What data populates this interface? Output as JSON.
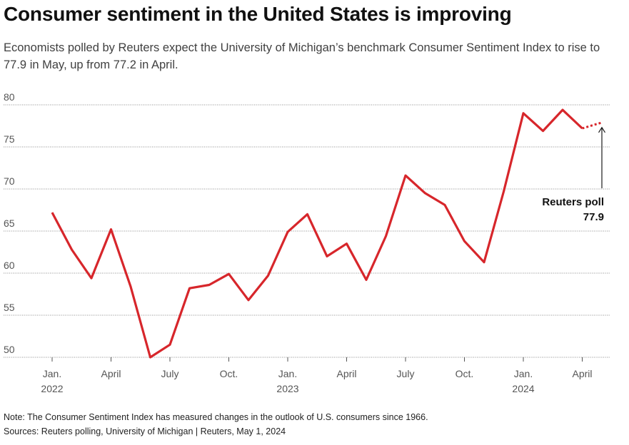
{
  "header": {
    "title": "Consumer sentiment in the United States is improving",
    "subtitle": "Economists polled by Reuters expect the University of Michigan’s benchmark Consumer Sentiment Index to rise to 77.9 in May, up from 77.2 in April."
  },
  "footer": {
    "note": "Note: The Consumer Sentiment Index has measured changes in the outlook of U.S. consumers since 1966.",
    "sources": "Sources: Reuters polling, University of Michigan | Reuters, May 1, 2024"
  },
  "chart_data": {
    "type": "line",
    "title": "Consumer sentiment in the United States is improving",
    "xlabel": "",
    "ylabel": "",
    "ylim": [
      50,
      80
    ],
    "yticks": [
      50,
      55,
      60,
      65,
      70,
      75,
      80
    ],
    "grid": true,
    "xticks": [
      {
        "index": 0,
        "label": "Jan.",
        "year": "2022"
      },
      {
        "index": 3,
        "label": "April",
        "year": ""
      },
      {
        "index": 6,
        "label": "July",
        "year": ""
      },
      {
        "index": 9,
        "label": "Oct.",
        "year": ""
      },
      {
        "index": 12,
        "label": "Jan.",
        "year": "2023"
      },
      {
        "index": 15,
        "label": "April",
        "year": ""
      },
      {
        "index": 18,
        "label": "July",
        "year": ""
      },
      {
        "index": 21,
        "label": "Oct.",
        "year": ""
      },
      {
        "index": 24,
        "label": "Jan.",
        "year": "2024"
      },
      {
        "index": 27,
        "label": "April",
        "year": ""
      }
    ],
    "series": [
      {
        "name": "Consumer Sentiment Index",
        "color": "#d7262b",
        "style": "solid",
        "x": [
          "Jan 2022",
          "Feb 2022",
          "Mar 2022",
          "Apr 2022",
          "May 2022",
          "Jun 2022",
          "Jul 2022",
          "Aug 2022",
          "Sep 2022",
          "Oct 2022",
          "Nov 2022",
          "Dec 2022",
          "Jan 2023",
          "Feb 2023",
          "Mar 2023",
          "Apr 2023",
          "May 2023",
          "Jun 2023",
          "Jul 2023",
          "Aug 2023",
          "Sep 2023",
          "Oct 2023",
          "Nov 2023",
          "Dec 2023",
          "Jan 2024",
          "Feb 2024",
          "Mar 2024",
          "Apr 2024"
        ],
        "values": [
          67.2,
          62.8,
          59.4,
          65.2,
          58.4,
          50.0,
          51.5,
          58.2,
          58.6,
          59.9,
          56.8,
          59.7,
          64.9,
          67.0,
          62.0,
          63.5,
          59.2,
          64.4,
          71.6,
          69.5,
          68.1,
          63.8,
          61.3,
          69.7,
          79.0,
          76.9,
          79.4,
          77.2
        ]
      },
      {
        "name": "Reuters poll forecast",
        "color": "#d7262b",
        "style": "dotted",
        "x": [
          "Apr 2024",
          "May 2024"
        ],
        "values": [
          77.2,
          77.9
        ]
      }
    ],
    "annotations": [
      {
        "label": "Reuters poll",
        "value": "77.9",
        "target": "May 2024"
      }
    ]
  }
}
